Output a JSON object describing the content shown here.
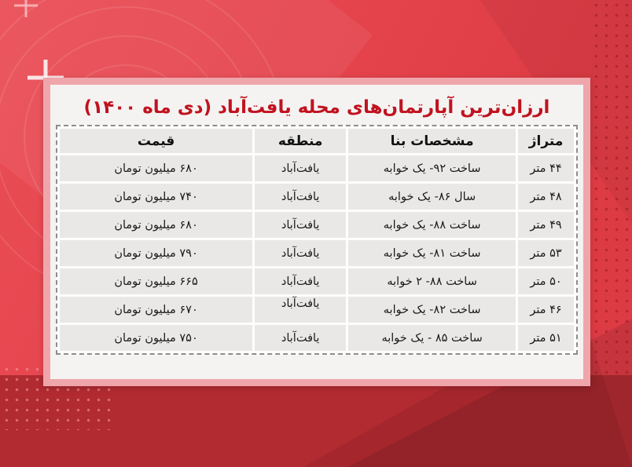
{
  "chart_data": {
    "type": "table",
    "title": "ارزان‌ترین آپارتمان‌های محله یافت‌آباد (دی ماه ۱۴۰۰)",
    "columns": [
      "متراژ",
      "مشخصات بنا",
      "منطقه",
      "قیمت"
    ],
    "rows": [
      {
        "area": "۴۴ متر",
        "specs": "ساخت ۹۲- یک خوابه",
        "region": "یافت‌آباد",
        "price": "۶۸۰ میلیون تومان"
      },
      {
        "area": "۴۸ متر",
        "specs": "سال ۸۶- یک خوابه",
        "region": "یافت‌آباد",
        "price": "۷۴۰ میلیون تومان"
      },
      {
        "area": "۴۹ متر",
        "specs": "ساخت ۸۸- یک خوابه",
        "region": "یافت‌آباد",
        "price": "۶۸۰ میلیون تومان"
      },
      {
        "area": "۵۳ متر",
        "specs": "ساخت ۸۱- یک خوابه",
        "region": "یافت‌آباد",
        "price": "۷۹۰ میلیون تومان"
      },
      {
        "area": "۵۰ متر",
        "specs": "ساخت ۸۸- ۲ خوابه",
        "region": "یافت‌آباد",
        "price": "۶۶۵ میلیون تومان"
      },
      {
        "area": "۴۶ متر",
        "specs": "ساخت ۸۲- یک خوابه",
        "region": "یافت‌آباد",
        "price": "۶۷۰ میلیون تومان",
        "region_top": true
      },
      {
        "area": "۵۱ متر",
        "specs": "ساخت ۸۵ - یک خوابه",
        "region": "یافت‌آباد",
        "price": "۷۵۰ میلیون تومان"
      }
    ]
  },
  "colors": {
    "background_top_red": "#e4434c",
    "background_bottom_red": "#b22b31",
    "card_border_pink": "#efa6ab",
    "card_background": "#f4f3f2",
    "title_red": "#c1121f",
    "cell_gray": "#e9e8e7",
    "dashed_border_gray": "#8d8d8d",
    "text_dark": "#1a1a1a"
  }
}
